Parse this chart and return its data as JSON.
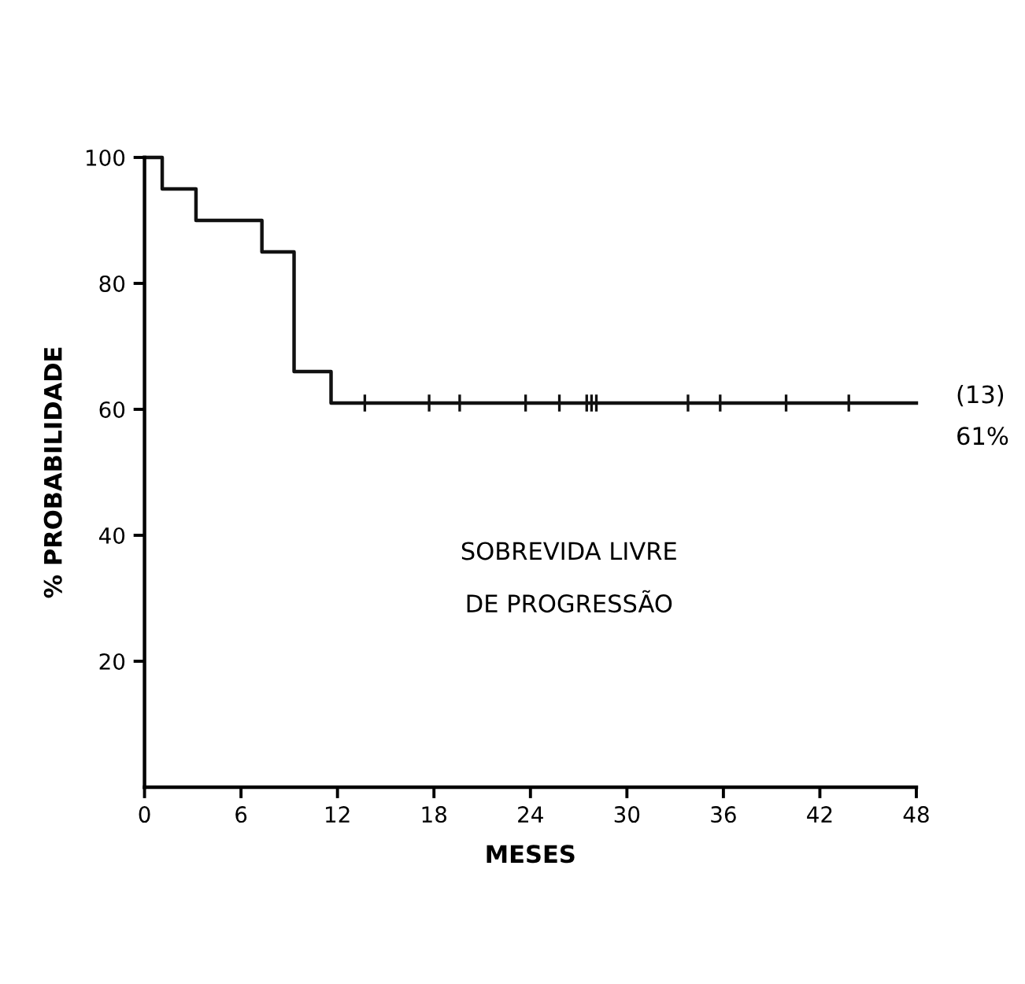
{
  "chart_data": {
    "type": "step",
    "xlabel": "MESES",
    "ylabel": "% PROBABILIDADE",
    "xlim": [
      0,
      48
    ],
    "xticks": [
      0,
      6,
      12,
      18,
      24,
      30,
      36,
      42,
      48
    ],
    "ylim": [
      0,
      100
    ],
    "yticks": [
      20,
      40,
      60,
      80,
      100
    ],
    "grid": false,
    "legend": false,
    "series": [
      {
        "color": "#111111",
        "x": [
          0,
          1.1,
          3.2,
          7.3,
          9.3,
          11.6,
          48
        ],
        "values": [
          100,
          95,
          90,
          85,
          66,
          61,
          61
        ]
      },
      {
        "type": "scatter",
        "marker": "cross",
        "color": "#111111",
        "x": [
          13.7,
          17.7,
          19.6,
          23.7,
          25.8,
          27.5,
          27.8,
          28.1,
          33.8,
          35.8,
          39.9,
          43.8
        ],
        "values": [
          61,
          61,
          61,
          61,
          61,
          61,
          61,
          61,
          61,
          61,
          61,
          61
        ]
      }
    ],
    "annotations": [
      {
        "text": "(13)",
        "x": 48,
        "y": 61
      },
      {
        "text": "61%",
        "x": 48,
        "y": 61
      },
      "SOBREVIDA LIVRE\nDE PROGRESSÃO"
    ]
  }
}
